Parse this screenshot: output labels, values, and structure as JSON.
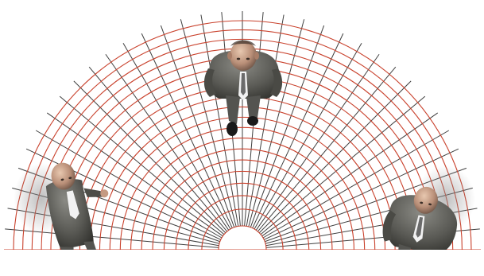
{
  "scene": {
    "background": "#ffffff",
    "grid": {
      "shape": "semicircle",
      "ring_color": "#c9412c",
      "spoke_color": "#1e1e1e",
      "ring_count": 20,
      "spoke_count": 36
    },
    "figures": [
      {
        "name": "businessman-top",
        "view": "top-down",
        "suit_color": "#5a5a55"
      },
      {
        "name": "businessman-left",
        "view": "top-down",
        "suit_color": "#5a5a55"
      },
      {
        "name": "businessman-right",
        "view": "top-down",
        "suit_color": "#5a5a55"
      }
    ]
  }
}
